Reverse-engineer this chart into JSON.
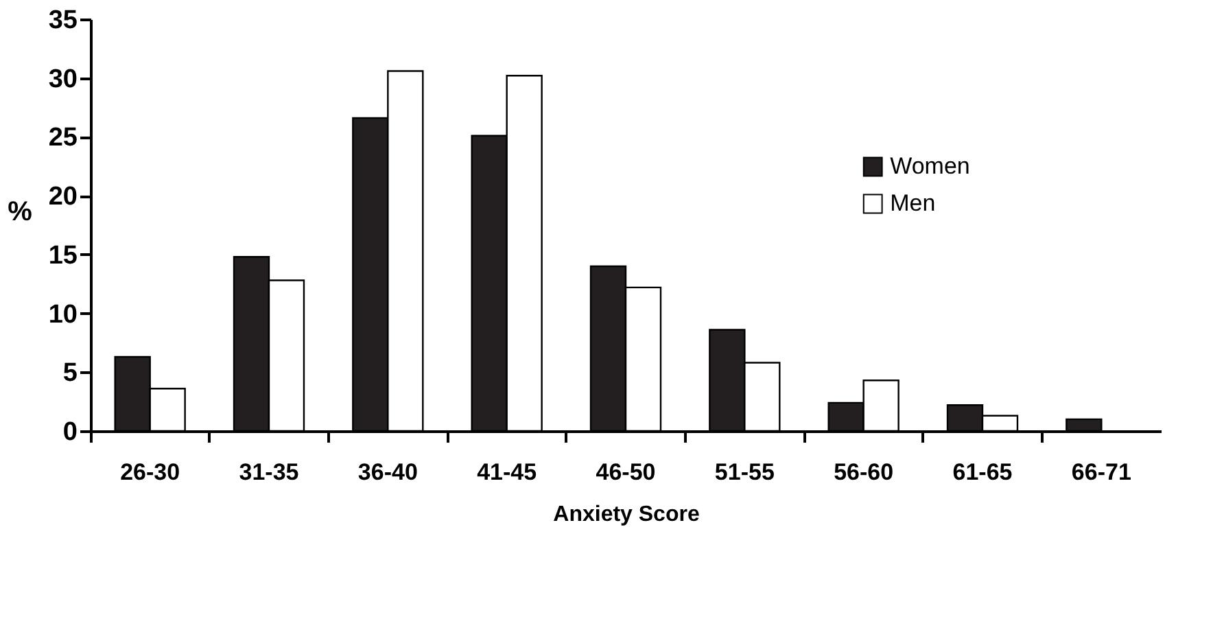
{
  "chart_data": {
    "type": "bar",
    "xlabel": "Anxiety Score",
    "ylabel": "%",
    "categories": [
      "26-30",
      "31-35",
      "36-40",
      "41-45",
      "46-50",
      "51-55",
      "56-60",
      "61-65",
      "66-71"
    ],
    "series": [
      {
        "name": "Women",
        "color": "#231f20",
        "values": [
          6.3,
          14.8,
          26.6,
          25.1,
          14.0,
          8.6,
          2.4,
          2.2,
          1.0
        ]
      },
      {
        "name": "Men",
        "color": "#ffffff",
        "values": [
          3.6,
          12.8,
          30.6,
          30.2,
          12.2,
          5.8,
          4.3,
          1.3,
          null
        ]
      }
    ],
    "ylim": [
      0,
      35
    ],
    "yticks": [
      0,
      5,
      10,
      15,
      20,
      25,
      30,
      35
    ],
    "grid": false,
    "legend": "right"
  }
}
